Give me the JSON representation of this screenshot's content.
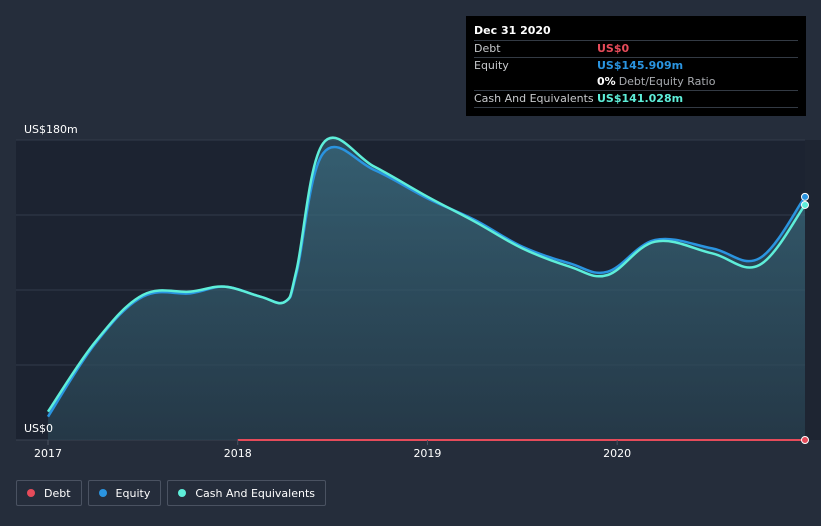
{
  "chart_data": {
    "type": "area",
    "y_axis": {
      "top_label": "US$180m",
      "bottom_label": "US$0",
      "ylim": [
        0,
        180
      ]
    },
    "x_tick_labels": [
      "2017",
      "2018",
      "2019",
      "2020"
    ],
    "xlim": [
      2017.0,
      2020.99
    ],
    "series": [
      {
        "name": "Debt",
        "color": "#e64b5a",
        "points": [
          [
            2018.0,
            0
          ],
          [
            2020.99,
            0
          ]
        ]
      },
      {
        "name": "Equity",
        "color": "#2a94e0",
        "points": [
          [
            2017.0,
            14
          ],
          [
            2017.25,
            58
          ],
          [
            2017.5,
            86
          ],
          [
            2017.75,
            88
          ],
          [
            2017.93,
            92
          ],
          [
            2018.12,
            86
          ],
          [
            2018.25,
            83
          ],
          [
            2018.31,
            100
          ],
          [
            2018.45,
            172
          ],
          [
            2018.72,
            162
          ],
          [
            2019.0,
            145
          ],
          [
            2019.25,
            132
          ],
          [
            2019.5,
            116
          ],
          [
            2019.75,
            106
          ],
          [
            2019.95,
            101
          ],
          [
            2020.2,
            120
          ],
          [
            2020.5,
            115
          ],
          [
            2020.75,
            109
          ],
          [
            2020.99,
            145.909
          ]
        ]
      },
      {
        "name": "Cash And Equivalents",
        "color": "#5eeed9",
        "points": [
          [
            2017.0,
            17
          ],
          [
            2017.25,
            59
          ],
          [
            2017.5,
            87
          ],
          [
            2017.75,
            89
          ],
          [
            2017.93,
            92
          ],
          [
            2018.12,
            86
          ],
          [
            2018.25,
            83
          ],
          [
            2018.31,
            102
          ],
          [
            2018.45,
            178
          ],
          [
            2018.72,
            164
          ],
          [
            2019.0,
            146
          ],
          [
            2019.25,
            131
          ],
          [
            2019.5,
            115
          ],
          [
            2019.75,
            104
          ],
          [
            2019.95,
            99
          ],
          [
            2020.2,
            119
          ],
          [
            2020.5,
            112
          ],
          [
            2020.75,
            105
          ],
          [
            2020.99,
            141.028
          ]
        ]
      }
    ]
  },
  "tooltip": {
    "date": "Dec 31 2020",
    "rows": [
      {
        "label": "Debt",
        "value": "US$0",
        "color": "#e64b5a"
      },
      {
        "label": "Equity",
        "value": "US$145.909m",
        "color": "#2a94e0"
      }
    ],
    "ratio_value": "0%",
    "ratio_text": "Debt/Equity Ratio",
    "cash_label": "Cash And Equivalents",
    "cash_value": "US$141.028m",
    "cash_color": "#5eeed9"
  },
  "legend": [
    {
      "label": "Debt",
      "color": "#e64b5a"
    },
    {
      "label": "Equity",
      "color": "#2a94e0"
    },
    {
      "label": "Cash And Equivalents",
      "color": "#5eeed9"
    }
  ]
}
